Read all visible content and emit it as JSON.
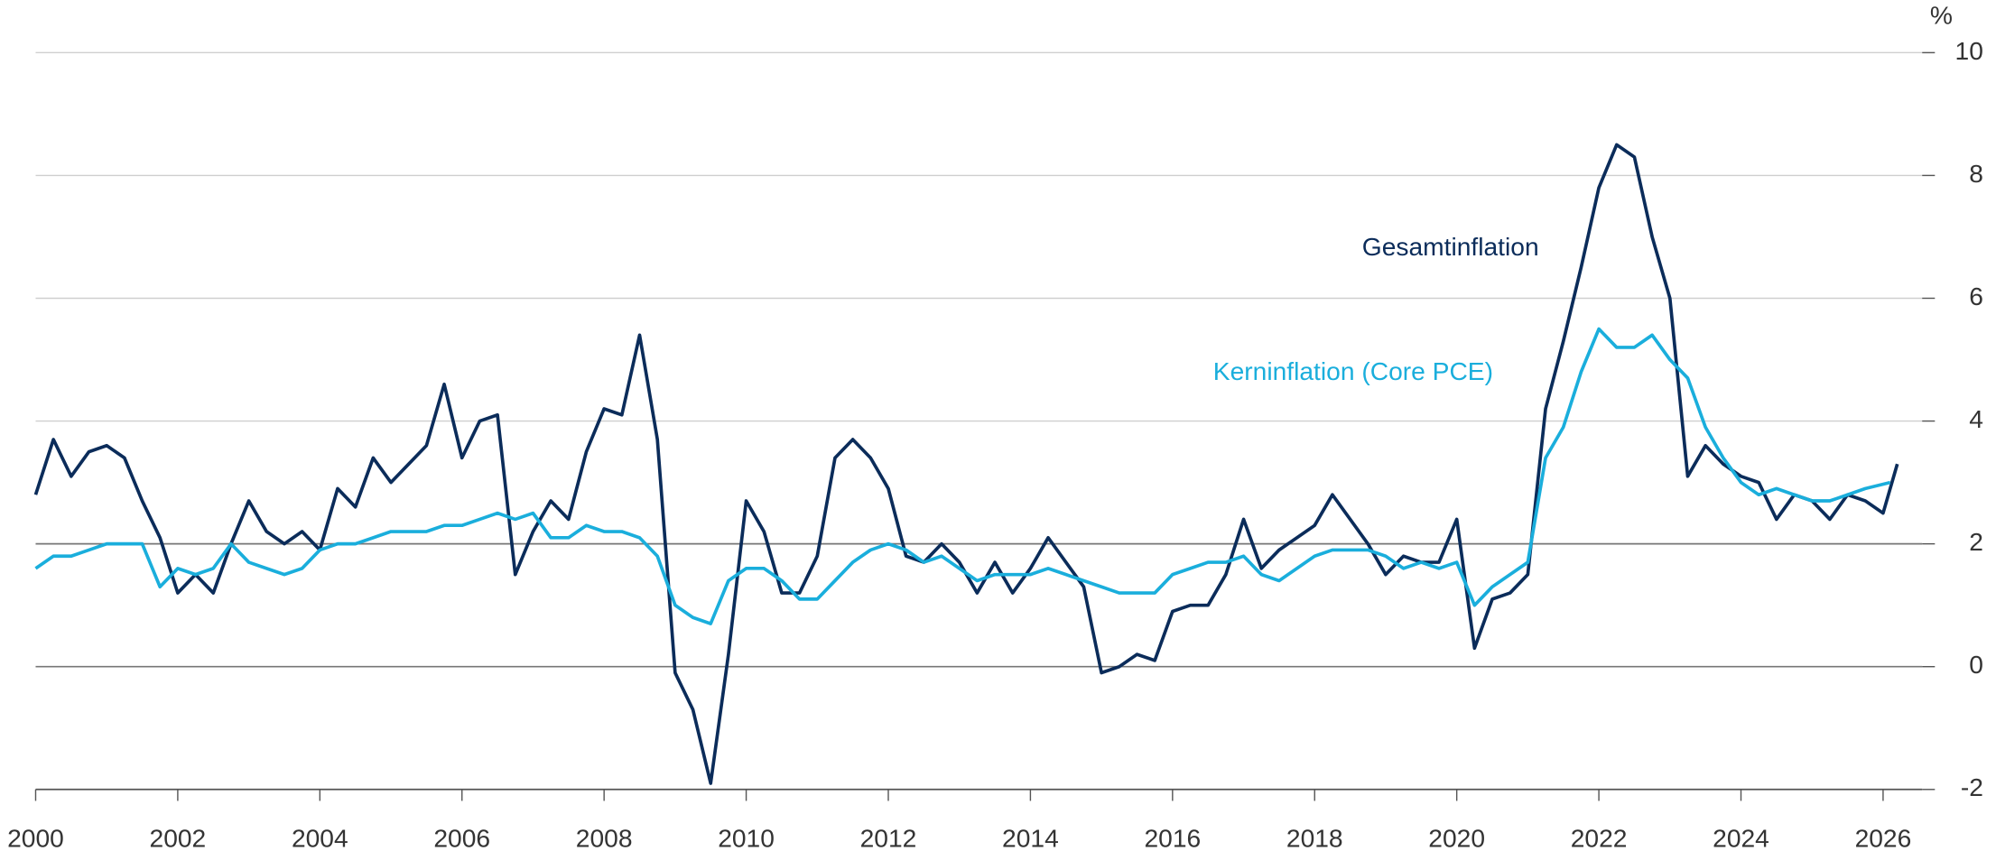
{
  "chart_data": {
    "type": "line",
    "unit_label": "%",
    "xlim": [
      2000,
      2026.55
    ],
    "xticks": [
      2000,
      2002,
      2004,
      2006,
      2008,
      2010,
      2012,
      2014,
      2016,
      2018,
      2020,
      2022,
      2024,
      2026
    ],
    "ylim": [
      -2,
      10
    ],
    "yticks": [
      -2,
      0,
      2,
      4,
      6,
      8,
      10
    ],
    "grid": true,
    "reference_lines": [
      0,
      2
    ],
    "series": [
      {
        "name": "Gesamtinflation",
        "color": "#0b2c5a",
        "x": [
          2000,
          2000.25,
          2000.5,
          2000.75,
          2001,
          2001.25,
          2001.5,
          2001.75,
          2002,
          2002.25,
          2002.5,
          2002.75,
          2003,
          2003.25,
          2003.5,
          2003.75,
          2004,
          2004.25,
          2004.5,
          2004.75,
          2005,
          2005.25,
          2005.5,
          2005.75,
          2006,
          2006.25,
          2006.5,
          2006.75,
          2007,
          2007.25,
          2007.5,
          2007.75,
          2008,
          2008.25,
          2008.5,
          2008.75,
          2009,
          2009.25,
          2009.5,
          2009.75,
          2010,
          2010.25,
          2010.5,
          2010.75,
          2011,
          2011.25,
          2011.5,
          2011.75,
          2012,
          2012.25,
          2012.5,
          2012.75,
          2013,
          2013.25,
          2013.5,
          2013.75,
          2014,
          2014.25,
          2014.5,
          2014.75,
          2015,
          2015.25,
          2015.5,
          2015.75,
          2016,
          2016.25,
          2016.5,
          2016.75,
          2017,
          2017.25,
          2017.5,
          2017.75,
          2018,
          2018.25,
          2018.5,
          2018.75,
          2019,
          2019.25,
          2019.5,
          2019.75,
          2020,
          2020.25,
          2020.5,
          2020.75,
          2021,
          2021.25,
          2021.5,
          2021.75,
          2022,
          2022.25,
          2022.5,
          2022.75,
          2023,
          2023.25,
          2023.5,
          2023.75,
          2024,
          2024.25,
          2024.5,
          2024.75,
          2025,
          2025.25,
          2025.5,
          2025.75,
          2026,
          2026.2
        ],
        "values": [
          2.8,
          3.7,
          3.1,
          3.5,
          3.6,
          3.4,
          2.7,
          2.1,
          1.2,
          1.5,
          1.2,
          2.0,
          2.7,
          2.2,
          2.0,
          2.2,
          1.9,
          2.9,
          2.6,
          3.4,
          3.0,
          3.3,
          3.6,
          4.6,
          3.4,
          4.0,
          4.1,
          1.5,
          2.2,
          2.7,
          2.4,
          3.5,
          4.2,
          4.1,
          5.4,
          3.7,
          -0.1,
          -0.7,
          -1.9,
          0.2,
          2.7,
          2.2,
          1.2,
          1.2,
          1.8,
          3.4,
          3.7,
          3.4,
          2.9,
          1.8,
          1.7,
          2.0,
          1.7,
          1.2,
          1.7,
          1.2,
          1.6,
          2.1,
          1.7,
          1.3,
          -0.1,
          0.0,
          0.2,
          0.1,
          0.9,
          1.0,
          1.0,
          1.5,
          2.4,
          1.6,
          1.9,
          2.1,
          2.3,
          2.8,
          2.4,
          2.0,
          1.5,
          1.8,
          1.7,
          1.7,
          2.4,
          0.3,
          1.1,
          1.2,
          1.5,
          4.2,
          5.3,
          6.5,
          7.8,
          8.5,
          8.3,
          7.0,
          6.0,
          3.1,
          3.6,
          3.3,
          3.1,
          3.0,
          2.4,
          2.8,
          2.7,
          2.4,
          2.8,
          2.7,
          2.5,
          3.3
        ]
      },
      {
        "name": "Kerninflation (Core PCE)",
        "color": "#1aaedc",
        "x": [
          2000,
          2000.25,
          2000.5,
          2000.75,
          2001,
          2001.25,
          2001.5,
          2001.75,
          2002,
          2002.25,
          2002.5,
          2002.75,
          2003,
          2003.25,
          2003.5,
          2003.75,
          2004,
          2004.25,
          2004.5,
          2004.75,
          2005,
          2005.25,
          2005.5,
          2005.75,
          2006,
          2006.25,
          2006.5,
          2006.75,
          2007,
          2007.25,
          2007.5,
          2007.75,
          2008,
          2008.25,
          2008.5,
          2008.75,
          2009,
          2009.25,
          2009.5,
          2009.75,
          2010,
          2010.25,
          2010.5,
          2010.75,
          2011,
          2011.25,
          2011.5,
          2011.75,
          2012,
          2012.25,
          2012.5,
          2012.75,
          2013,
          2013.25,
          2013.5,
          2013.75,
          2014,
          2014.25,
          2014.5,
          2014.75,
          2015,
          2015.25,
          2015.5,
          2015.75,
          2016,
          2016.25,
          2016.5,
          2016.75,
          2017,
          2017.25,
          2017.5,
          2017.75,
          2018,
          2018.25,
          2018.5,
          2018.75,
          2019,
          2019.25,
          2019.5,
          2019.75,
          2020,
          2020.25,
          2020.5,
          2020.75,
          2021,
          2021.25,
          2021.5,
          2021.75,
          2022,
          2022.25,
          2022.5,
          2022.75,
          2023,
          2023.25,
          2023.5,
          2023.75,
          2024,
          2024.25,
          2024.5,
          2024.75,
          2025,
          2025.25,
          2025.5,
          2025.75,
          2026.1
        ],
        "values": [
          1.6,
          1.8,
          1.8,
          1.9,
          2.0,
          2.0,
          2.0,
          1.3,
          1.6,
          1.5,
          1.6,
          2.0,
          1.7,
          1.6,
          1.5,
          1.6,
          1.9,
          2.0,
          2.0,
          2.1,
          2.2,
          2.2,
          2.2,
          2.3,
          2.3,
          2.4,
          2.5,
          2.4,
          2.5,
          2.1,
          2.1,
          2.3,
          2.2,
          2.2,
          2.1,
          1.8,
          1.0,
          0.8,
          0.7,
          1.4,
          1.6,
          1.6,
          1.4,
          1.1,
          1.1,
          1.4,
          1.7,
          1.9,
          2.0,
          1.9,
          1.7,
          1.8,
          1.6,
          1.4,
          1.5,
          1.5,
          1.5,
          1.6,
          1.5,
          1.4,
          1.3,
          1.2,
          1.2,
          1.2,
          1.5,
          1.6,
          1.7,
          1.7,
          1.8,
          1.5,
          1.4,
          1.6,
          1.8,
          1.9,
          1.9,
          1.9,
          1.8,
          1.6,
          1.7,
          1.6,
          1.7,
          1.0,
          1.3,
          1.5,
          1.7,
          3.4,
          3.9,
          4.8,
          5.5,
          5.2,
          5.2,
          5.4,
          5.0,
          4.7,
          3.9,
          3.4,
          3.0,
          2.8,
          2.9,
          2.8,
          2.7,
          2.7,
          2.8,
          2.9,
          3.0
        ]
      }
    ]
  }
}
